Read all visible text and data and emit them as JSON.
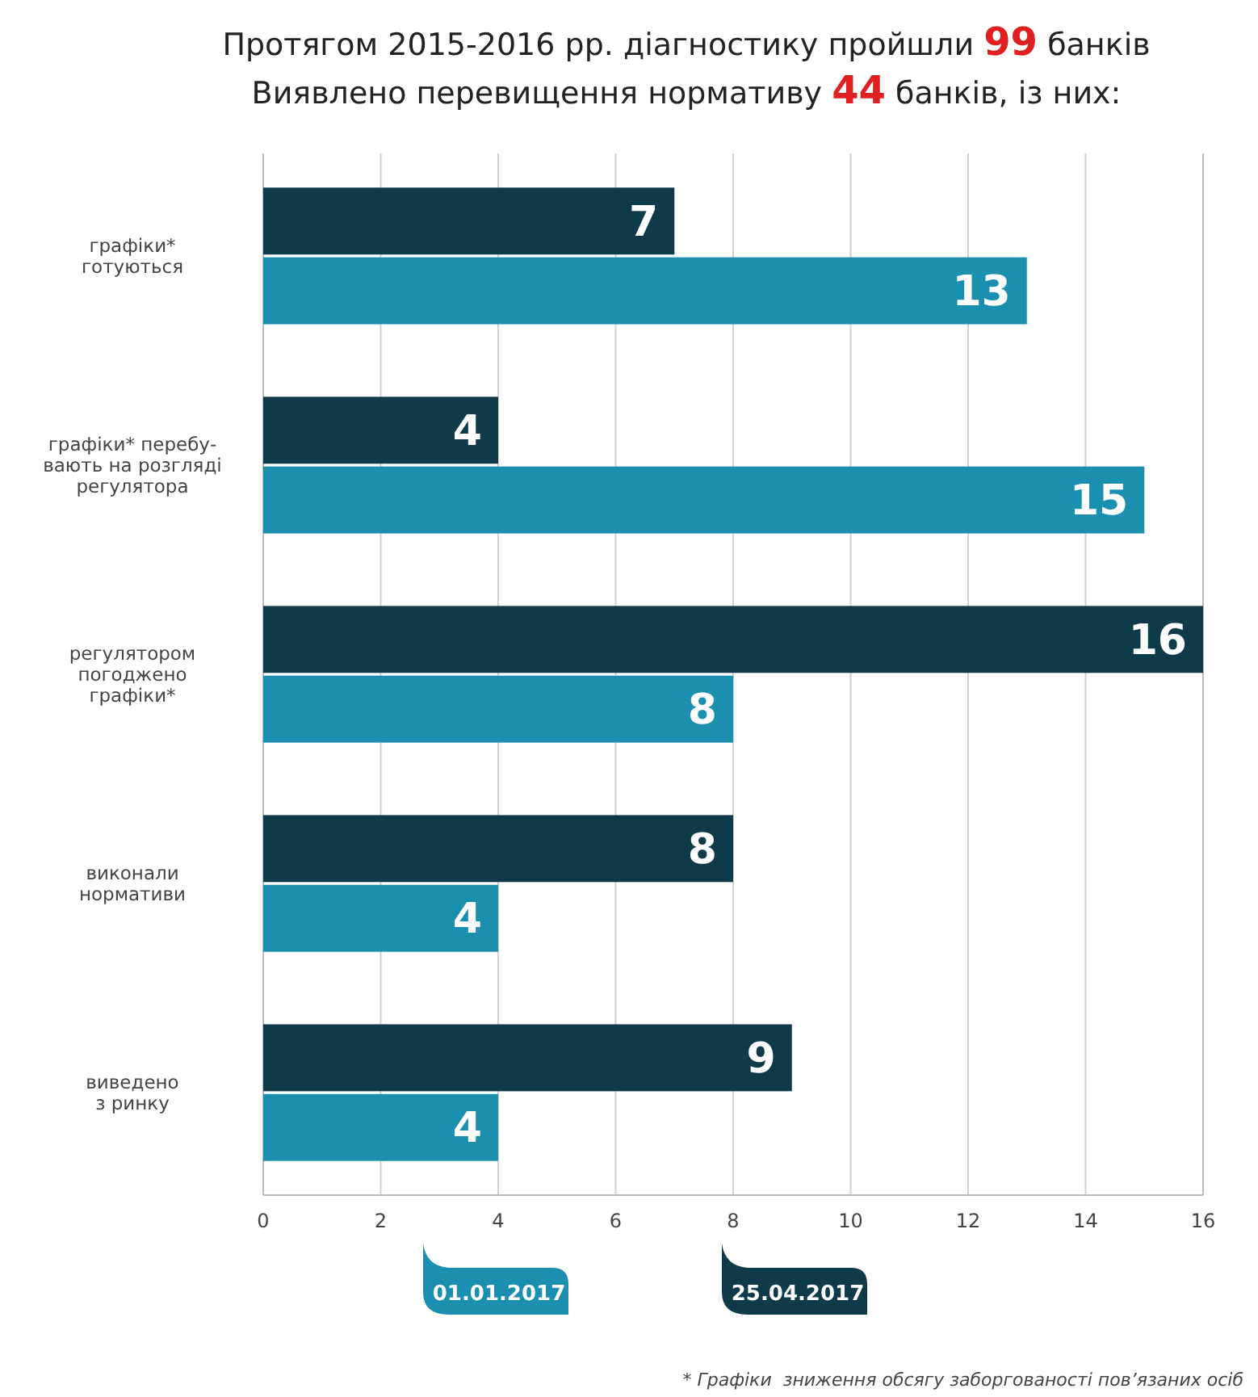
{
  "chart_data": {
    "type": "bar",
    "orientation": "horizontal",
    "title": "Протягом 2015-2016 рр. діагностику пройшли 99 банків",
    "subtitle": "Виявлено перевищення нормативу 44 банків, із них:",
    "categories": [
      "графіки*\nготуються",
      "графіки* перебу-\nвають на розгляді\nрегулятора",
      "регулятором\nпогоджено\nграфіки*",
      "виконали\nнормативи",
      "виведено\nз ринку"
    ],
    "series": [
      {
        "name": "25.04.2017",
        "color": "#0f3a4a",
        "values": [
          7,
          4,
          16,
          8,
          9
        ]
      },
      {
        "name": "01.01.2017",
        "color": "#1a8fb0",
        "values": [
          13,
          15,
          8,
          4,
          4
        ]
      }
    ],
    "xlim": [
      0,
      16
    ],
    "xticks": [
      0,
      2,
      4,
      6,
      8,
      10,
      12,
      14,
      16
    ],
    "grid": "x",
    "legend": "bottom",
    "data_labels": true,
    "annotations": [
      "* Графіки  зниження обсягу заборгованості пов’язаних осіб"
    ]
  }
}
